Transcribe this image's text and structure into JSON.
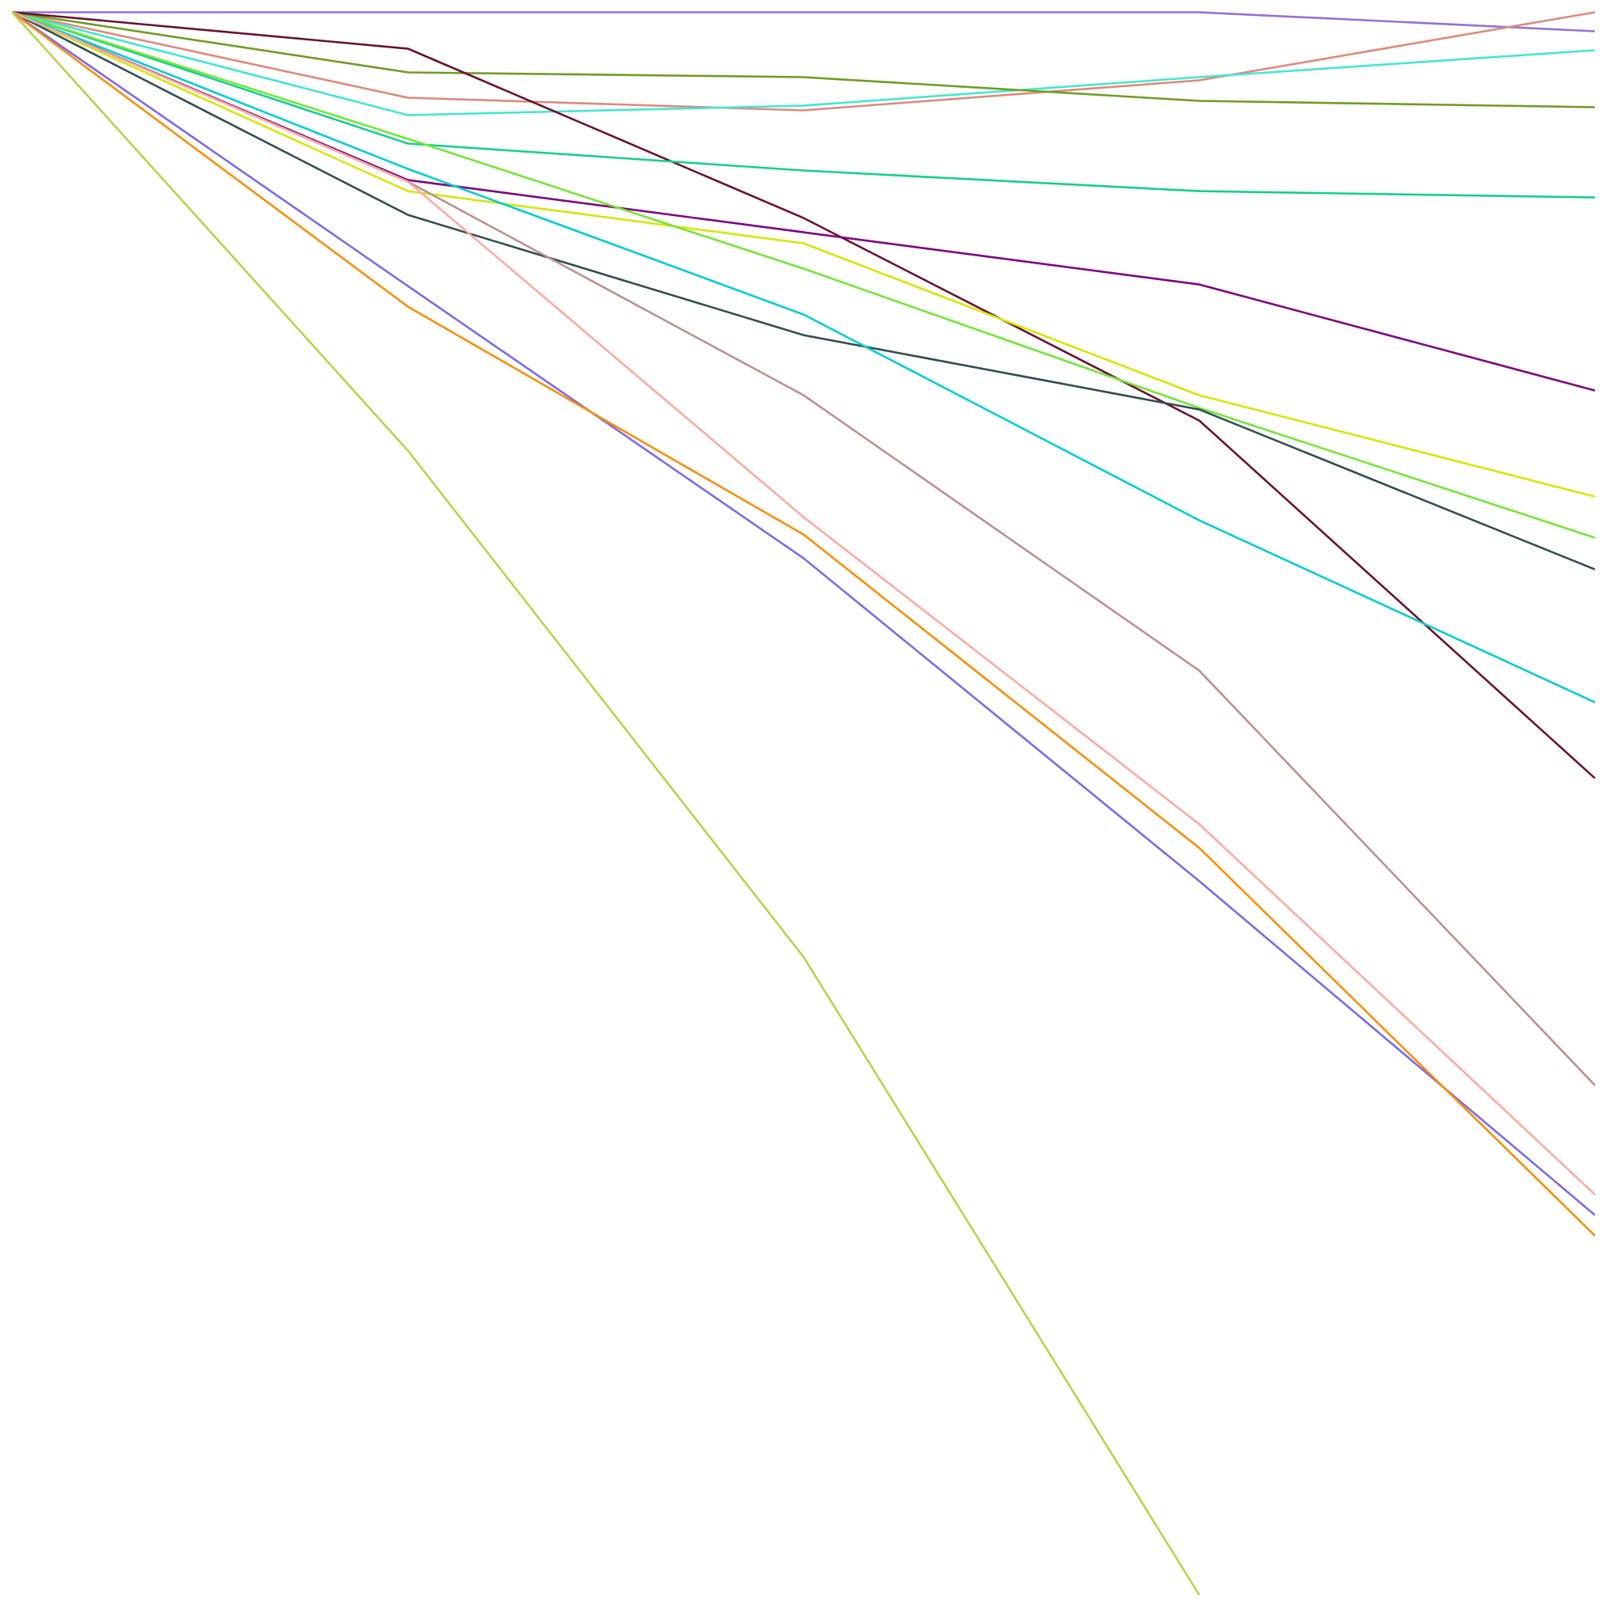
{
  "chart_data": {
    "type": "line",
    "title": "",
    "xlabel": "",
    "ylabel": "",
    "x": [
      0,
      1,
      2,
      3,
      4
    ],
    "xlim": [
      0,
      4
    ],
    "ylim": [
      -100,
      0
    ],
    "grid": false,
    "axes_visible": false,
    "legend": "none",
    "series": [
      {
        "color": "#9370DB",
        "values": [
          0,
          0,
          0,
          0,
          -1.2
        ]
      },
      {
        "color": "#E08878",
        "values": [
          0,
          -5.4,
          -6.2,
          -4.3,
          0
        ]
      },
      {
        "color": "#40E8D0",
        "values": [
          0,
          -6.5,
          -5.9,
          -4.1,
          -2.4
        ]
      },
      {
        "color": "#6B9E1F",
        "values": [
          0,
          -3.8,
          -4.1,
          -5.6,
          -6.0
        ]
      },
      {
        "color": "#6B0F2F",
        "values": [
          0,
          -2.3,
          -13.0,
          -25.8,
          -48.4
        ]
      },
      {
        "color": "#10D090",
        "values": [
          0,
          -8.3,
          -10.0,
          -11.3,
          -11.7
        ]
      },
      {
        "color": "#800080",
        "values": [
          0,
          -10.6,
          -13.9,
          -17.2,
          -23.9
        ]
      },
      {
        "color": "#D4E800",
        "values": [
          0,
          -11.3,
          -14.6,
          -24.2,
          -30.6
        ]
      },
      {
        "color": "#70E830",
        "values": [
          0,
          -8.0,
          -16.2,
          -25.0,
          -33.2
        ]
      },
      {
        "color": "#2F4F4F",
        "values": [
          0,
          -12.8,
          -20.4,
          -25.1,
          -35.2
        ]
      },
      {
        "color": "#00CED1",
        "values": [
          0,
          -9.9,
          -19.1,
          -32.1,
          -43.6
        ]
      },
      {
        "color": "#BC8F8F",
        "values": [
          0,
          -10.7,
          -24.2,
          -41.6,
          -67.8
        ]
      },
      {
        "color": "#FFA8A0",
        "values": [
          0,
          -10.7,
          -31.9,
          -51.3,
          -74.7
        ]
      },
      {
        "color": "#7B68EE",
        "values": [
          0,
          -17.3,
          -34.5,
          -54.9,
          -76.0
        ]
      },
      {
        "color": "#FF8C00",
        "values": [
          0,
          -18.6,
          -33.0,
          -52.8,
          -77.3
        ]
      },
      {
        "color": "#BCD04A",
        "values": [
          0,
          -27.7,
          -59.7,
          -100,
          null
        ]
      }
    ]
  }
}
